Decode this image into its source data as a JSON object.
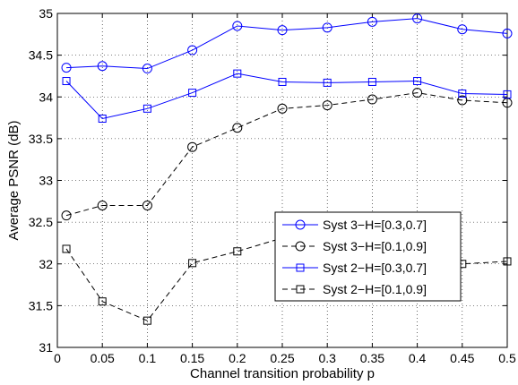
{
  "chart_data": {
    "type": "line",
    "xlabel": "Channel transition probability p",
    "ylabel": "Average PSNR (dB)",
    "xlim": [
      0,
      0.5
    ],
    "ylim": [
      31,
      35
    ],
    "x_ticks": [
      0,
      0.05,
      0.1,
      0.15,
      0.2,
      0.25,
      0.3,
      0.35,
      0.4,
      0.45,
      0.5
    ],
    "x_tick_labels": [
      "0",
      "0.05",
      "0.1",
      "0.15",
      "0.2",
      "0.25",
      "0.3",
      "0.35",
      "0.4",
      "0.45",
      "0.5"
    ],
    "y_ticks": [
      31,
      31.5,
      32,
      32.5,
      33,
      33.5,
      34,
      34.5,
      35
    ],
    "y_tick_labels": [
      "31",
      "31.5",
      "32",
      "32.5",
      "33",
      "33.5",
      "34",
      "34.5",
      "35"
    ],
    "grid": true,
    "legend_position": "right",
    "x": [
      0.01,
      0.05,
      0.1,
      0.15,
      0.2,
      0.25,
      0.3,
      0.35,
      0.4,
      0.45,
      0.5
    ],
    "series": [
      {
        "name": "Syst 3−H=[0.3,0.7]",
        "color": "#0000ff",
        "line": "solid",
        "marker": "circle",
        "values": [
          34.35,
          34.37,
          34.34,
          34.56,
          34.85,
          34.8,
          34.83,
          34.9,
          34.94,
          34.81,
          34.76
        ]
      },
      {
        "name": "Syst 3−H=[0.1,0.9]",
        "color": "#000000",
        "line": "dashed",
        "marker": "circle",
        "values": [
          32.58,
          32.7,
          32.7,
          33.4,
          33.63,
          33.86,
          33.9,
          33.97,
          34.05,
          33.96,
          33.93
        ]
      },
      {
        "name": "Syst 2−H=[0.3,0.7]",
        "color": "#0000ff",
        "line": "solid",
        "marker": "square",
        "values": [
          34.19,
          33.74,
          33.86,
          34.05,
          34.28,
          34.18,
          34.17,
          34.18,
          34.19,
          34.04,
          34.03
        ]
      },
      {
        "name": "Syst 2−H=[0.1,0.9]",
        "color": "#000000",
        "line": "dashed",
        "marker": "square",
        "values": [
          32.18,
          31.55,
          31.32,
          32.01,
          32.15,
          32.31,
          32.29,
          32.28,
          32.21,
          32.0,
          32.03
        ]
      }
    ]
  }
}
